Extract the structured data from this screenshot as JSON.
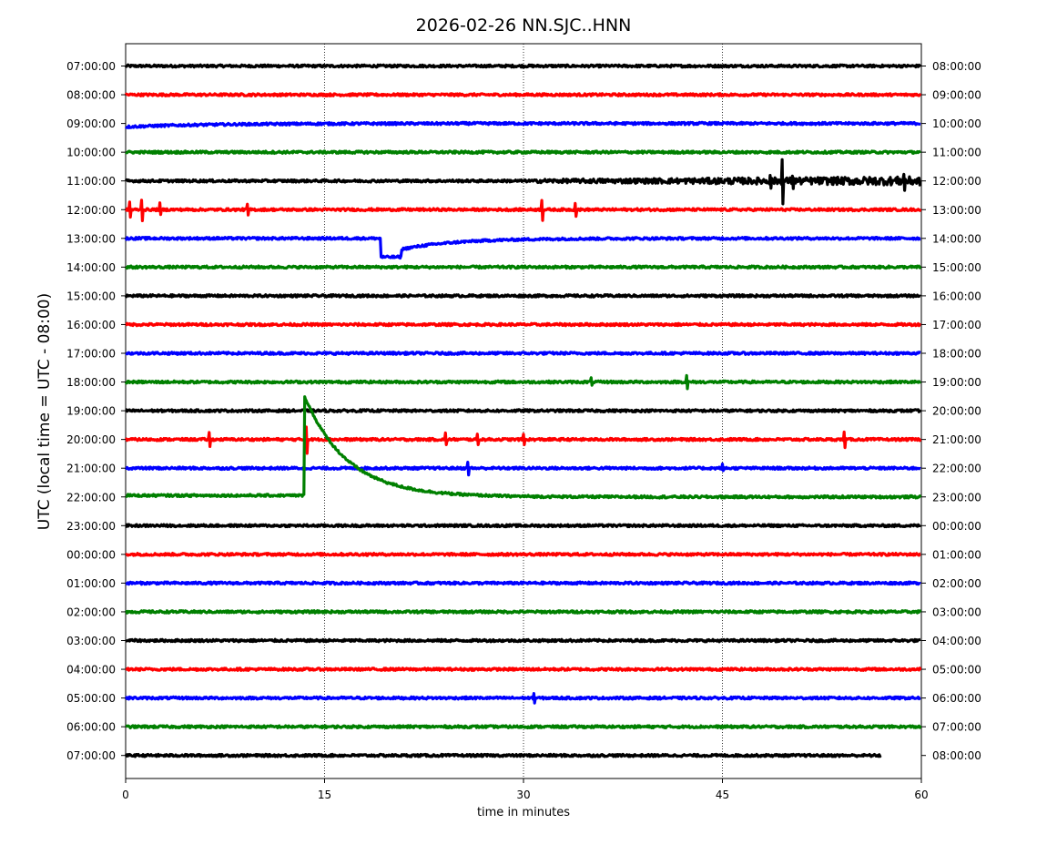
{
  "chart_data": {
    "type": "line",
    "title": "2026-02-26 NN.SJC..HNN",
    "xlabel": "time in minutes",
    "ylabel": "UTC (local time = UTC - 08:00)",
    "xlim": [
      0,
      60
    ],
    "x_ticks": [
      0,
      15,
      30,
      45,
      60
    ],
    "vertical_gridlines": [
      15,
      30,
      45
    ],
    "left_labels": [
      "07:00:00",
      "08:00:00",
      "09:00:00",
      "10:00:00",
      "11:00:00",
      "12:00:00",
      "13:00:00",
      "14:00:00",
      "15:00:00",
      "16:00:00",
      "17:00:00",
      "18:00:00",
      "19:00:00",
      "20:00:00",
      "21:00:00",
      "22:00:00",
      "23:00:00",
      "00:00:00",
      "01:00:00",
      "02:00:00",
      "03:00:00",
      "04:00:00",
      "05:00:00",
      "06:00:00",
      "07:00:00"
    ],
    "right_labels": [
      "08:00:00",
      "09:00:00",
      "10:00:00",
      "11:00:00",
      "12:00:00",
      "13:00:00",
      "14:00:00",
      "15:00:00",
      "16:00:00",
      "17:00:00",
      "18:00:00",
      "19:00:00",
      "20:00:00",
      "21:00:00",
      "22:00:00",
      "23:00:00",
      "00:00:00",
      "01:00:00",
      "02:00:00",
      "03:00:00",
      "04:00:00",
      "05:00:00",
      "06:00:00",
      "07:00:00",
      "08:00:00"
    ],
    "trace_colors": [
      "#000000",
      "#ff0000",
      "#0000ff",
      "#008000"
    ],
    "traces": [
      {
        "end_minute": 60
      },
      {
        "end_minute": 60
      },
      {
        "end_minute": 60,
        "ramp": {
          "start_offset": -0.6,
          "tau": 6
        }
      },
      {
        "end_minute": 60
      },
      {
        "end_minute": 60,
        "noise_segments": [
          {
            "from": 31,
            "to": 60,
            "amp": 0.15
          }
        ],
        "spikes": [
          {
            "at": 48.6,
            "amp": 0.25
          },
          {
            "at": 49.5,
            "amp": 0.85
          },
          {
            "at": 50.3,
            "amp": 0.2
          },
          {
            "at": 58.7,
            "amp": 0.25
          }
        ]
      },
      {
        "end_minute": 60,
        "spikes": [
          {
            "at": 0.3,
            "amp": 0.25
          },
          {
            "at": 1.2,
            "amp": 0.35
          },
          {
            "at": 2.6,
            "amp": 0.2
          },
          {
            "at": 9.2,
            "amp": 0.2
          },
          {
            "at": 31.4,
            "amp": 0.35
          },
          {
            "at": 33.9,
            "amp": 0.25
          }
        ]
      },
      {
        "end_minute": 60,
        "offset_step": {
          "from": 19.2,
          "to": 20.8,
          "value": -0.65
        },
        "recovery": {
          "start": 20.8,
          "value": -0.38,
          "tau": 4
        }
      },
      {
        "end_minute": 60
      },
      {
        "end_minute": 60
      },
      {
        "end_minute": 60
      },
      {
        "end_minute": 60
      },
      {
        "end_minute": 60,
        "spikes": [
          {
            "at": 35.1,
            "amp": 0.15
          },
          {
            "at": 42.3,
            "amp": 0.25
          }
        ]
      },
      {
        "end_minute": 60
      },
      {
        "end_minute": 60,
        "spikes": [
          {
            "at": 6.3,
            "amp": 0.25
          },
          {
            "at": 13.6,
            "amp": 0.45
          },
          {
            "at": 24.1,
            "amp": 0.2
          },
          {
            "at": 26.5,
            "amp": 0.2
          },
          {
            "at": 30.0,
            "amp": 0.2
          },
          {
            "at": 54.2,
            "amp": 0.25
          }
        ]
      },
      {
        "end_minute": 60,
        "spikes": [
          {
            "at": 25.8,
            "amp": 0.2
          },
          {
            "at": 45.0,
            "amp": 0.12
          }
        ]
      },
      {
        "end_minute": 60,
        "level_change": {
          "from": 0,
          "to": 13.5,
          "value": 0.05
        },
        "exp_step": {
          "start": 13.5,
          "peak": 3.5,
          "tau": 3.2
        }
      },
      {
        "end_minute": 60
      },
      {
        "end_minute": 60
      },
      {
        "end_minute": 60
      },
      {
        "end_minute": 60
      },
      {
        "end_minute": 60
      },
      {
        "end_minute": 60
      },
      {
        "end_minute": 60,
        "spikes": [
          {
            "at": 30.8,
            "amp": 0.15
          }
        ]
      },
      {
        "end_minute": 60
      },
      {
        "end_minute": 57
      }
    ]
  }
}
